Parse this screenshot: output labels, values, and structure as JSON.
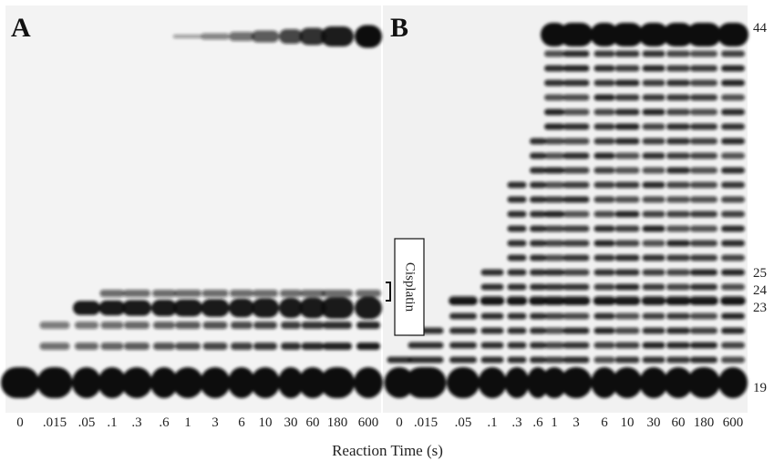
{
  "panels": [
    {
      "label": "A",
      "lanes": [
        "0",
        ".015",
        ".05",
        ".1",
        ".3",
        ".6",
        "1",
        "3",
        "6",
        "10",
        "30",
        "60",
        "180",
        "600"
      ]
    },
    {
      "label": "B",
      "lanes": [
        "0",
        ".015",
        ".05",
        ".1",
        ".3",
        ".6",
        "1",
        "3",
        "6",
        "10",
        "30",
        "60",
        "180",
        "600"
      ]
    }
  ],
  "annotation": "Cisplatin",
  "markers": [
    "44",
    "25",
    "24",
    "23",
    "19"
  ],
  "x_axis_label": "Reaction Time (s)"
}
